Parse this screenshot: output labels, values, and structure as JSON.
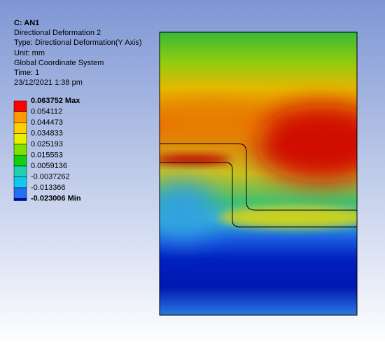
{
  "header": {
    "title": "C: AN1",
    "lines": [
      "Directional Deformation 2",
      "Type: Directional Deformation(Y Axis)",
      "Unit: mm",
      "Global Coordinate System",
      "Time: 1",
      "23/12/2021 1:38 pm"
    ]
  },
  "legend": {
    "labels": [
      "0.063752 Max",
      "0.054112",
      "0.044473",
      "0.034833",
      "0.025193",
      "0.015553",
      "0.0059136",
      "-0.0037262",
      "-0.013366",
      "-0.023006 Min"
    ]
  }
}
